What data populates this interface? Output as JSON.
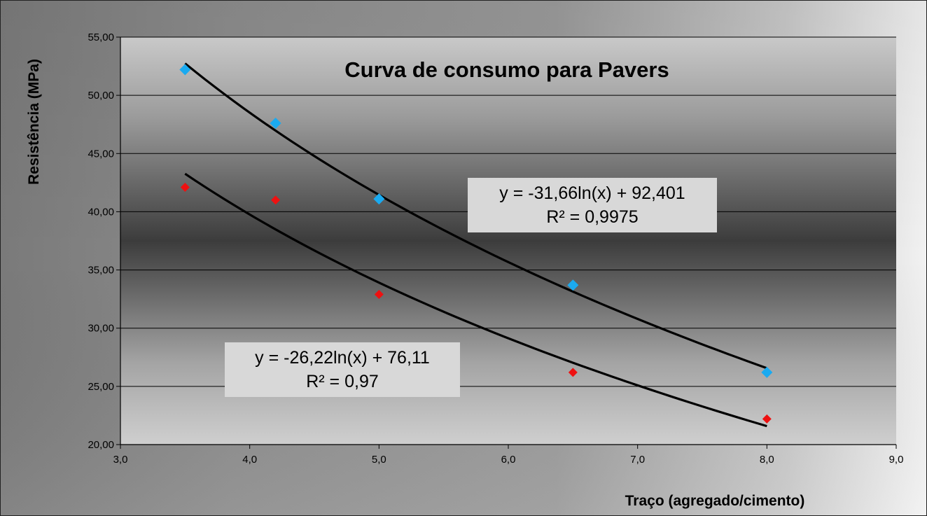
{
  "chart_data": {
    "type": "scatter",
    "title": "Curva de consumo para Pavers",
    "xlabel": "Traço (agregado/cimento)",
    "ylabel": "Resistência (MPa)",
    "xlim": [
      3.0,
      9.0
    ],
    "ylim": [
      20.0,
      55.0
    ],
    "x_ticks": [
      "3,0",
      "4,0",
      "5,0",
      "6,0",
      "7,0",
      "8,0",
      "9,0"
    ],
    "y_ticks": [
      "20,00",
      "25,00",
      "30,00",
      "35,00",
      "40,00",
      "45,00",
      "50,00",
      "55,00"
    ],
    "grid": "horizontal",
    "legend": "none",
    "series": [
      {
        "color": "#1aaaf0",
        "marker": "diamond",
        "x": [
          3.5,
          4.2,
          5.0,
          6.5,
          8.0
        ],
        "y": [
          52.2,
          47.6,
          41.1,
          33.7,
          26.2
        ],
        "trendline": {
          "type": "logarithmic",
          "a": -31.66,
          "b": 92.401
        },
        "equation": "y = -31,66ln(x) + 92,401",
        "r2": "R² = 0,9975"
      },
      {
        "color": "#ee1111",
        "marker": "diamond",
        "x": [
          3.5,
          4.2,
          5.0,
          6.5,
          8.0
        ],
        "y": [
          42.1,
          41.0,
          32.9,
          26.2,
          22.2
        ],
        "trendline": {
          "type": "logarithmic",
          "a": -26.22,
          "b": 76.11
        },
        "equation": "y = -26,22ln(x) + 76,11",
        "r2": "R² = 0,97"
      }
    ]
  }
}
